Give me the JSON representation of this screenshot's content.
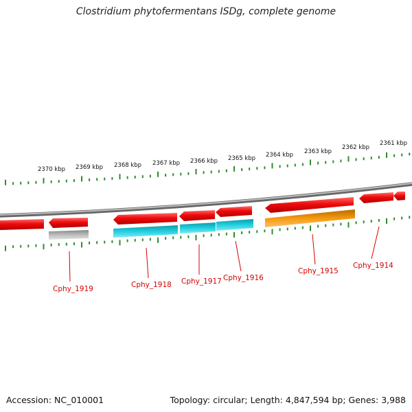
{
  "title": "Clostridium phytofermentans ISDg, complete genome",
  "footer": {
    "accession": "Accession: NC_010001",
    "summary": "Topology: circular; Length: 4,847,594 bp; Genes: 3,988"
  },
  "colors": {
    "forward_gene": "#ee1111",
    "rna_cyan": "#22ccdd",
    "rna_orange": "#f59a10",
    "pseudo_gray": "#bbbbbb",
    "tick": "#2e8b2e",
    "backbone": "#888888",
    "label": "#d40000"
  },
  "scale_labels": [
    "2370 kbp",
    "2369 kbp",
    "2368 kbp",
    "2367 kbp",
    "2366 kbp",
    "2365 kbp",
    "2364 kbp",
    "2363 kbp",
    "2362 kbp",
    "2361 kbp"
  ],
  "gene_labels": [
    "Cphy_1919",
    "Cphy_1918",
    "Cphy_1917",
    "Cphy_1916",
    "Cphy_1915",
    "Cphy_1914"
  ]
}
